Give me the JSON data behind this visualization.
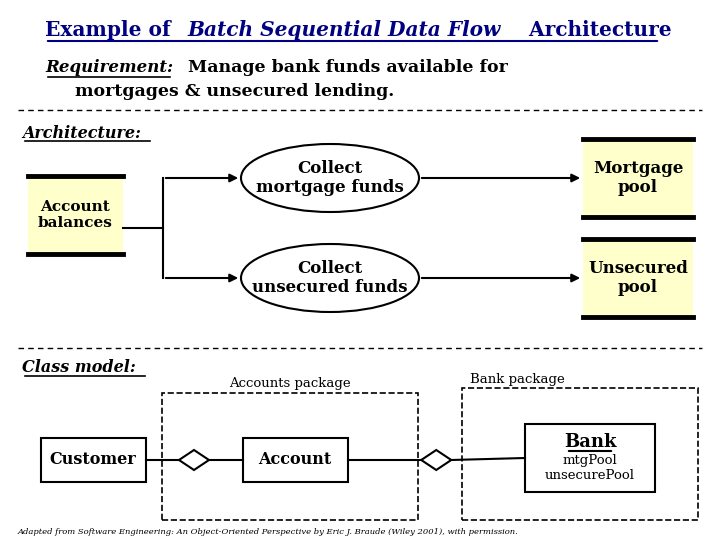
{
  "title_normal1": "Example of ",
  "title_italic": "Batch Sequential Data Flow",
  "title_normal2": " Architecture",
  "title_color": "#000080",
  "bg_color": "#ffffff",
  "req_label": "Requirement:",
  "req_line1": "Manage bank funds available for",
  "req_line2": "mortgages & unsecured lending.",
  "arch_label": "Architecture:",
  "class_label": "Class model:",
  "account_balances": "Account\nbalances",
  "collect_mortgage": "Collect\nmortgage funds",
  "collect_unsecured": "Collect\nunsecured funds",
  "mortgage_pool": "Mortgage\npool",
  "unsecured_pool": "Unsecured\npool",
  "accounts_package": "Accounts package",
  "bank_package": "Bank package",
  "customer": "Customer",
  "account": "Account",
  "bank_title": "Bank",
  "bank_attrs": "mtgPool\nunsecurePool",
  "footnote": "Adapted from Software Engineering: An Object-Oriented Perspective by Eric J. Braude (Wiley 2001), with permission.",
  "cream": "#ffffcc",
  "black": "#000000",
  "navy": "#000080"
}
